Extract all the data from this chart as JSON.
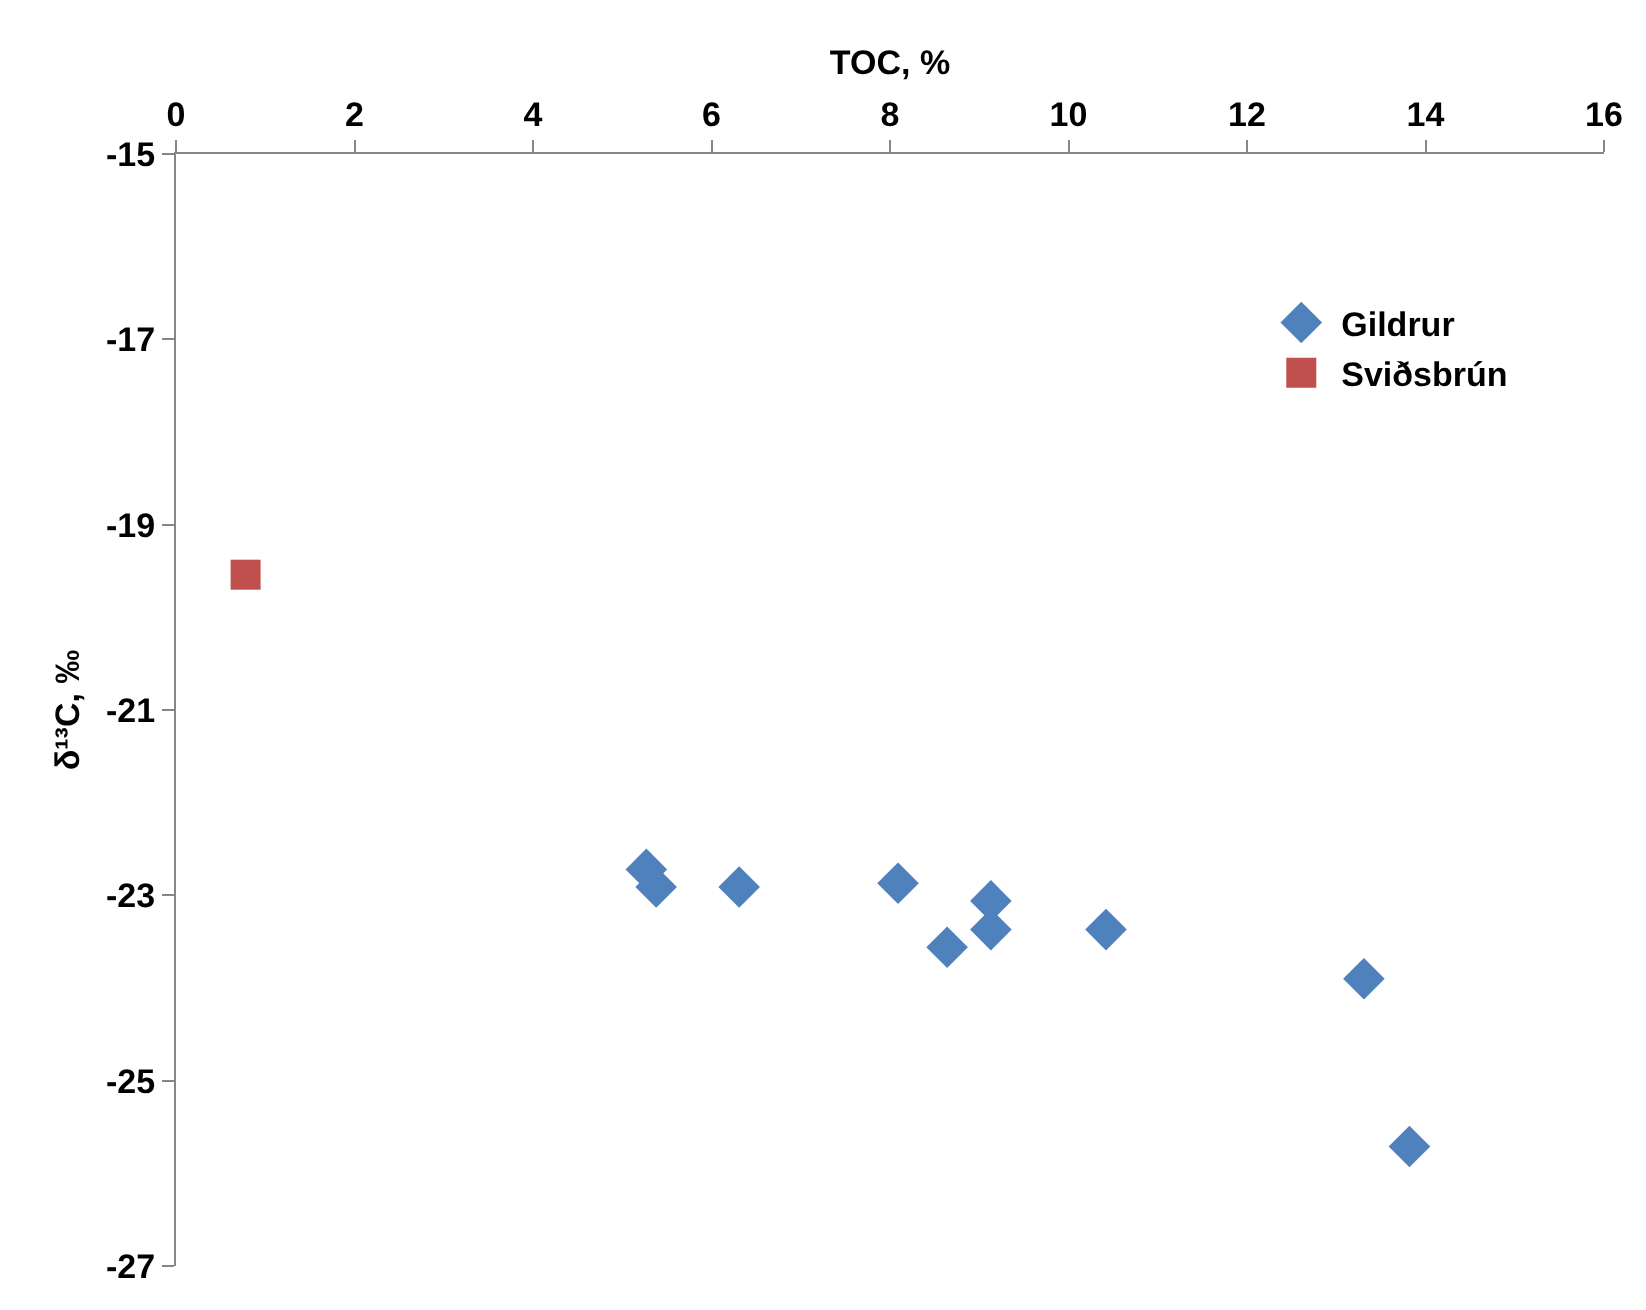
{
  "chart_data": {
    "type": "scatter",
    "xlabel": "TOC, %",
    "ylabel": "δ¹³C, ‰",
    "xlim": [
      0,
      16
    ],
    "xticks": [
      0,
      2,
      4,
      6,
      8,
      10,
      12,
      14,
      16
    ],
    "ylim": [
      -27,
      -15
    ],
    "yticks": [
      -27,
      -25,
      -23,
      -21,
      -19,
      -17,
      -15
    ],
    "grid": false,
    "legend": "top right",
    "series": [
      {
        "name": "Gildrur",
        "color": "#4f81bd",
        "marker": "diamond",
        "x": [
          5.27,
          5.38,
          6.31,
          8.09,
          8.64,
          9.13,
          9.13,
          10.42,
          13.31,
          13.82
        ],
        "values": [
          -22.72,
          -22.91,
          -22.91,
          -22.87,
          -23.56,
          -23.06,
          -23.37,
          -23.37,
          -23.9,
          -25.71
        ]
      },
      {
        "name": "Sviðsbrún",
        "color": "#c0504d",
        "marker": "square",
        "x": [
          0.78
        ],
        "values": [
          -19.54
        ]
      }
    ]
  }
}
